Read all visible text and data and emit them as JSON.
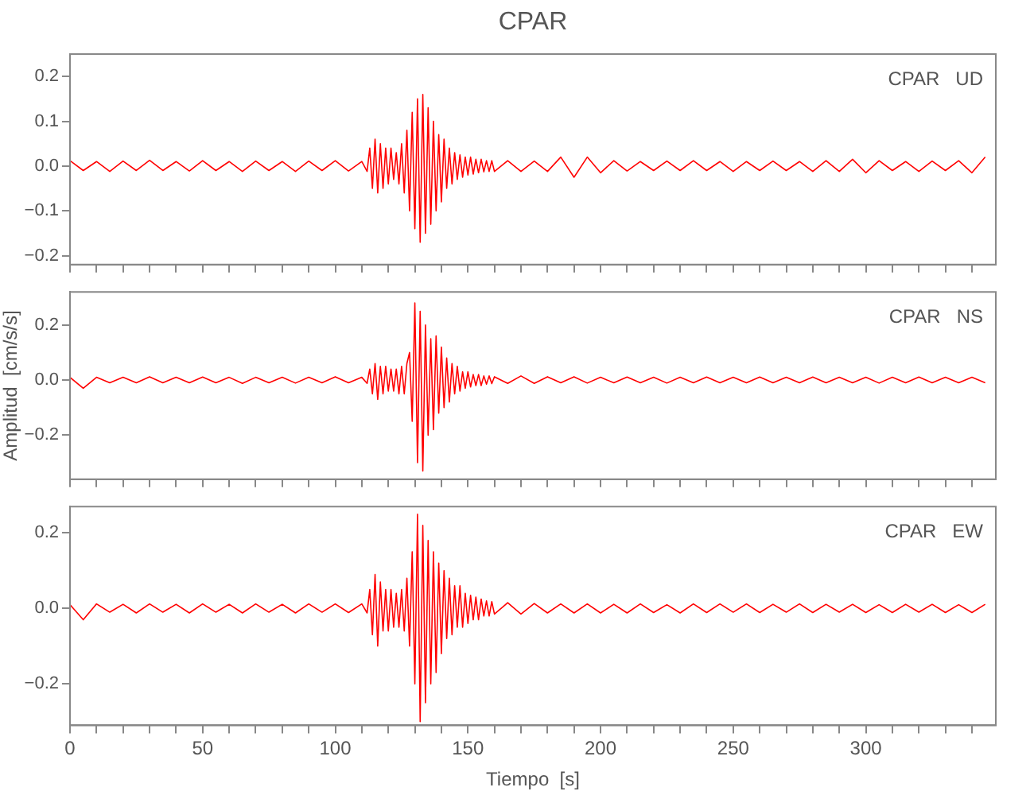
{
  "chart_data": [
    {
      "type": "line",
      "title": "CPAR",
      "annotations": [
        "CPAR   UD"
      ],
      "tick_labels": "y",
      "x": [
        0,
        5,
        10,
        15,
        20,
        25,
        30,
        35,
        40,
        45,
        50,
        55,
        60,
        65,
        70,
        75,
        80,
        85,
        90,
        95,
        100,
        105,
        110,
        112,
        113,
        114,
        115,
        116,
        117,
        118,
        119,
        120,
        121,
        122,
        123,
        124,
        125,
        126,
        127,
        128,
        129,
        130,
        131,
        132,
        133,
        134,
        135,
        136,
        137,
        138,
        139,
        140,
        141,
        142,
        143,
        144,
        145,
        146,
        147,
        148,
        149,
        150,
        151,
        152,
        153,
        154,
        155,
        156,
        157,
        158,
        159,
        160,
        165,
        170,
        175,
        180,
        185,
        190,
        195,
        200,
        205,
        210,
        215,
        220,
        225,
        230,
        235,
        240,
        245,
        250,
        255,
        260,
        265,
        270,
        275,
        280,
        285,
        290,
        295,
        300,
        305,
        310,
        315,
        320,
        325,
        330,
        335,
        340,
        345
      ],
      "series": [
        {
          "color": "#ff0000",
          "values": [
            0.012,
            -0.01,
            0.01,
            -0.012,
            0.011,
            -0.01,
            0.013,
            -0.01,
            0.01,
            -0.011,
            0.012,
            -0.01,
            0.01,
            -0.012,
            0.011,
            -0.01,
            0.01,
            -0.012,
            0.011,
            -0.01,
            0.012,
            -0.011,
            0.01,
            -0.012,
            0.04,
            -0.05,
            0.06,
            -0.06,
            0.05,
            -0.05,
            0.04,
            -0.04,
            0.04,
            -0.03,
            0.03,
            -0.04,
            0.05,
            -0.06,
            0.08,
            -0.1,
            0.12,
            -0.14,
            0.15,
            -0.17,
            0.16,
            -0.15,
            0.13,
            -0.13,
            0.1,
            -0.1,
            0.07,
            -0.08,
            0.06,
            -0.05,
            0.04,
            -0.04,
            0.03,
            -0.03,
            0.025,
            -0.025,
            0.02,
            -0.02,
            0.02,
            -0.018,
            0.015,
            -0.015,
            0.015,
            -0.013,
            0.012,
            -0.012,
            0.012,
            -0.012,
            0.012,
            -0.012,
            0.011,
            -0.012,
            0.02,
            -0.025,
            0.02,
            -0.015,
            0.012,
            -0.011,
            0.01,
            -0.01,
            0.011,
            -0.01,
            0.012,
            -0.01,
            0.01,
            -0.012,
            0.01,
            -0.01,
            0.011,
            -0.01,
            0.01,
            -0.012,
            0.012,
            -0.012,
            0.015,
            -0.015,
            0.012,
            -0.01,
            0.01,
            -0.012,
            0.011,
            -0.01,
            0.012,
            -0.015,
            0.02
          ]
        }
      ],
      "xlim": [
        0,
        349
      ],
      "xticks": [
        0,
        {
          "value": 10,
          "label": null
        },
        {
          "value": 20,
          "label": null
        },
        {
          "value": 30,
          "label": null
        },
        {
          "value": 40,
          "label": null
        },
        50,
        {
          "value": 60,
          "label": null
        },
        {
          "value": 70,
          "label": null
        },
        {
          "value": 80,
          "label": null
        },
        {
          "value": 90,
          "label": null
        },
        100,
        {
          "value": 110,
          "label": null
        },
        {
          "value": 120,
          "label": null
        },
        {
          "value": 130,
          "label": null
        },
        {
          "value": 140,
          "label": null
        },
        150,
        {
          "value": 160,
          "label": null
        },
        {
          "value": 170,
          "label": null
        },
        {
          "value": 180,
          "label": null
        },
        {
          "value": 190,
          "label": null
        },
        200,
        {
          "value": 210,
          "label": null
        },
        {
          "value": 220,
          "label": null
        },
        {
          "value": 230,
          "label": null
        },
        {
          "value": 240,
          "label": null
        },
        250,
        {
          "value": 260,
          "label": null
        },
        {
          "value": 270,
          "label": null
        },
        {
          "value": 280,
          "label": null
        },
        {
          "value": 290,
          "label": null
        },
        300,
        {
          "value": 310,
          "label": null
        },
        {
          "value": 320,
          "label": null
        },
        {
          "value": 330,
          "label": null
        },
        {
          "value": 340,
          "label": null
        }
      ],
      "ylim": [
        -0.22,
        0.25
      ],
      "yticks": [
        {
          "value": -0.2,
          "label": "−0.2"
        },
        {
          "value": -0.1,
          "label": "−0.1"
        },
        {
          "value": 0,
          "label": "0.0"
        },
        {
          "value": 0.1,
          "label": "0.1"
        },
        {
          "value": 0.2,
          "label": "0.2"
        }
      ]
    },
    {
      "type": "line",
      "ylabel": "Amplitud  [cm/s/s]",
      "annotations": [
        "CPAR   NS"
      ],
      "tick_labels": "y",
      "x": [
        0,
        5,
        10,
        15,
        20,
        25,
        30,
        35,
        40,
        45,
        50,
        55,
        60,
        65,
        70,
        75,
        80,
        85,
        90,
        95,
        100,
        105,
        110,
        112,
        113,
        114,
        115,
        116,
        117,
        118,
        119,
        120,
        121,
        122,
        123,
        124,
        125,
        126,
        127,
        128,
        129,
        130,
        131,
        132,
        133,
        134,
        135,
        136,
        137,
        138,
        139,
        140,
        141,
        142,
        143,
        144,
        145,
        146,
        147,
        148,
        149,
        150,
        151,
        152,
        153,
        154,
        155,
        156,
        157,
        158,
        159,
        160,
        165,
        170,
        175,
        180,
        185,
        190,
        195,
        200,
        205,
        210,
        215,
        220,
        225,
        230,
        235,
        240,
        245,
        250,
        255,
        260,
        265,
        270,
        275,
        280,
        285,
        290,
        295,
        300,
        305,
        310,
        315,
        320,
        325,
        330,
        335,
        340,
        345
      ],
      "series": [
        {
          "color": "#ff0000",
          "values": [
            0.01,
            -0.03,
            0.01,
            -0.01,
            0.01,
            -0.01,
            0.012,
            -0.01,
            0.01,
            -0.01,
            0.011,
            -0.01,
            0.01,
            -0.012,
            0.01,
            -0.01,
            0.01,
            -0.011,
            0.01,
            -0.01,
            0.012,
            -0.01,
            0.01,
            -0.012,
            0.04,
            -0.05,
            0.06,
            -0.07,
            0.05,
            -0.05,
            0.05,
            -0.04,
            0.04,
            -0.04,
            0.04,
            -0.05,
            0.05,
            -0.05,
            0.06,
            0.1,
            -0.15,
            0.28,
            -0.3,
            0.25,
            -0.33,
            0.2,
            -0.2,
            0.15,
            -0.18,
            0.16,
            -0.12,
            0.12,
            -0.1,
            0.08,
            -0.08,
            0.06,
            -0.05,
            0.05,
            -0.04,
            0.03,
            -0.03,
            0.03,
            -0.025,
            0.02,
            -0.02,
            0.02,
            -0.02,
            0.015,
            -0.015,
            0.015,
            -0.013,
            0.012,
            -0.012,
            0.015,
            -0.012,
            0.012,
            -0.01,
            0.012,
            -0.011,
            0.01,
            -0.01,
            0.011,
            -0.01,
            0.01,
            -0.011,
            0.01,
            -0.01,
            0.011,
            -0.01,
            0.01,
            -0.01,
            0.011,
            -0.01,
            0.01,
            -0.01,
            0.011,
            -0.01,
            0.01,
            -0.01,
            0.01,
            -0.011,
            0.01,
            -0.01,
            0.011,
            -0.01,
            0.01,
            -0.01,
            0.01,
            -0.01
          ]
        }
      ],
      "xlim": [
        0,
        349
      ],
      "xticks": [
        0,
        {
          "value": 10,
          "label": null
        },
        {
          "value": 20,
          "label": null
        },
        {
          "value": 30,
          "label": null
        },
        {
          "value": 40,
          "label": null
        },
        50,
        {
          "value": 60,
          "label": null
        },
        {
          "value": 70,
          "label": null
        },
        {
          "value": 80,
          "label": null
        },
        {
          "value": 90,
          "label": null
        },
        100,
        {
          "value": 110,
          "label": null
        },
        {
          "value": 120,
          "label": null
        },
        {
          "value": 130,
          "label": null
        },
        {
          "value": 140,
          "label": null
        },
        150,
        {
          "value": 160,
          "label": null
        },
        {
          "value": 170,
          "label": null
        },
        {
          "value": 180,
          "label": null
        },
        {
          "value": 190,
          "label": null
        },
        200,
        {
          "value": 210,
          "label": null
        },
        {
          "value": 220,
          "label": null
        },
        {
          "value": 230,
          "label": null
        },
        {
          "value": 240,
          "label": null
        },
        250,
        {
          "value": 260,
          "label": null
        },
        {
          "value": 270,
          "label": null
        },
        {
          "value": 280,
          "label": null
        },
        {
          "value": 290,
          "label": null
        },
        300,
        {
          "value": 310,
          "label": null
        },
        {
          "value": 320,
          "label": null
        },
        {
          "value": 330,
          "label": null
        },
        {
          "value": 340,
          "label": null
        }
      ],
      "ylim": [
        -0.36,
        0.32
      ],
      "yticks": [
        {
          "value": -0.2,
          "label": "−0.2"
        },
        {
          "value": 0,
          "label": "0.0"
        },
        {
          "value": 0.2,
          "label": "0.2"
        }
      ]
    },
    {
      "type": "line",
      "xlabel": "Tiempo  [s]",
      "annotations": [
        "CPAR   EW"
      ],
      "x": [
        0,
        5,
        10,
        15,
        20,
        25,
        30,
        35,
        40,
        45,
        50,
        55,
        60,
        65,
        70,
        75,
        80,
        85,
        90,
        95,
        100,
        105,
        110,
        112,
        113,
        114,
        115,
        116,
        117,
        118,
        119,
        120,
        121,
        122,
        123,
        124,
        125,
        126,
        127,
        128,
        129,
        130,
        131,
        132,
        133,
        134,
        135,
        136,
        137,
        138,
        139,
        140,
        141,
        142,
        143,
        144,
        145,
        146,
        147,
        148,
        149,
        150,
        151,
        152,
        153,
        154,
        155,
        156,
        157,
        158,
        159,
        160,
        165,
        170,
        175,
        180,
        185,
        190,
        195,
        200,
        205,
        210,
        215,
        220,
        225,
        230,
        235,
        240,
        245,
        250,
        255,
        260,
        265,
        270,
        275,
        280,
        285,
        290,
        295,
        300,
        305,
        310,
        315,
        320,
        325,
        330,
        335,
        340,
        345
      ],
      "series": [
        {
          "color": "#ff0000",
          "values": [
            0.01,
            -0.03,
            0.012,
            -0.01,
            0.011,
            -0.012,
            0.012,
            -0.01,
            0.011,
            -0.012,
            0.012,
            -0.01,
            0.011,
            -0.012,
            0.012,
            -0.01,
            0.011,
            -0.012,
            0.012,
            -0.01,
            0.012,
            -0.011,
            0.012,
            -0.012,
            0.05,
            -0.07,
            0.09,
            -0.1,
            0.07,
            -0.06,
            0.05,
            -0.06,
            0.05,
            -0.05,
            0.04,
            -0.05,
            0.05,
            -0.06,
            0.08,
            -0.1,
            0.15,
            -0.2,
            0.25,
            -0.3,
            0.22,
            -0.25,
            0.18,
            -0.2,
            0.15,
            -0.17,
            0.12,
            -0.12,
            0.1,
            -0.08,
            0.08,
            -0.07,
            0.06,
            -0.05,
            0.06,
            -0.05,
            0.04,
            -0.04,
            0.035,
            -0.03,
            0.03,
            -0.03,
            0.025,
            -0.02,
            0.02,
            -0.02,
            0.018,
            -0.015,
            0.015,
            -0.015,
            0.013,
            -0.012,
            0.012,
            -0.012,
            0.012,
            -0.012,
            0.011,
            -0.012,
            0.012,
            -0.011,
            0.01,
            -0.012,
            0.012,
            -0.011,
            0.012,
            -0.01,
            0.012,
            -0.011,
            0.011,
            -0.01,
            0.012,
            -0.011,
            0.011,
            -0.01,
            0.011,
            -0.011,
            0.01,
            -0.011,
            0.011,
            -0.01,
            0.011,
            -0.011,
            0.01,
            -0.011,
            0.011
          ]
        }
      ],
      "xlim": [
        0,
        349
      ],
      "xticks": [
        0,
        {
          "value": 10,
          "label": null
        },
        {
          "value": 20,
          "label": null
        },
        {
          "value": 30,
          "label": null
        },
        {
          "value": 40,
          "label": null
        },
        50,
        {
          "value": 60,
          "label": null
        },
        {
          "value": 70,
          "label": null
        },
        {
          "value": 80,
          "label": null
        },
        {
          "value": 90,
          "label": null
        },
        100,
        {
          "value": 110,
          "label": null
        },
        {
          "value": 120,
          "label": null
        },
        {
          "value": 130,
          "label": null
        },
        {
          "value": 140,
          "label": null
        },
        150,
        {
          "value": 160,
          "label": null
        },
        {
          "value": 170,
          "label": null
        },
        {
          "value": 180,
          "label": null
        },
        {
          "value": 190,
          "label": null
        },
        200,
        {
          "value": 210,
          "label": null
        },
        {
          "value": 220,
          "label": null
        },
        {
          "value": 230,
          "label": null
        },
        {
          "value": 240,
          "label": null
        },
        250,
        {
          "value": 260,
          "label": null
        },
        {
          "value": 270,
          "label": null
        },
        {
          "value": 280,
          "label": null
        },
        {
          "value": 290,
          "label": null
        },
        300,
        {
          "value": 310,
          "label": null
        },
        {
          "value": 320,
          "label": null
        },
        {
          "value": 330,
          "label": null
        },
        {
          "value": 340,
          "label": null
        }
      ],
      "ylim": [
        -0.31,
        0.27
      ],
      "yticks": [
        {
          "value": -0.2,
          "label": "−0.2"
        },
        {
          "value": 0,
          "label": "0.0"
        },
        {
          "value": 0.2,
          "label": "0.2"
        }
      ]
    }
  ]
}
